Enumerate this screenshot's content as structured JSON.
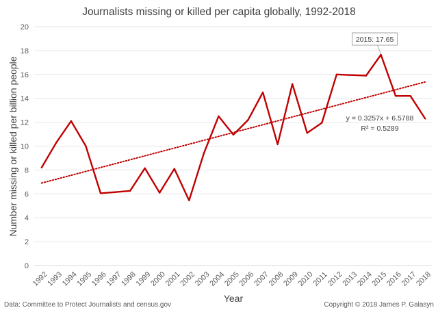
{
  "chart_data": {
    "type": "line",
    "title": "Journalists missing or killed per capita globally, 1992-2018",
    "xlabel": "Year",
    "ylabel": "Number missing or killed per billion people",
    "ylim": [
      0,
      20
    ],
    "yticks": [
      0,
      2,
      4,
      6,
      8,
      10,
      12,
      14,
      16,
      18,
      20
    ],
    "grid": true,
    "categories": [
      "1992",
      "1993",
      "1994",
      "1995",
      "1996",
      "1997",
      "1998",
      "1999",
      "2000",
      "2001",
      "2002",
      "2003",
      "2004",
      "2005",
      "2006",
      "2007",
      "2008",
      "2009",
      "2010",
      "2011",
      "2012",
      "2013",
      "2014",
      "2015",
      "2016",
      "2017",
      "2018"
    ],
    "series": [
      {
        "name": "Missing or killed per billion people",
        "color": "#c00000",
        "values": [
          8.2,
          10.3,
          12.1,
          10.0,
          6.05,
          6.15,
          6.25,
          8.15,
          6.1,
          8.1,
          5.45,
          9.4,
          12.5,
          10.95,
          12.2,
          14.5,
          10.15,
          15.2,
          11.1,
          11.95,
          16.0,
          15.95,
          15.9,
          17.65,
          14.2,
          14.2,
          12.3
        ]
      }
    ],
    "trendline": {
      "type": "linear",
      "slope": 0.3257,
      "intercept": 6.5788,
      "equation": "y = 0.3257x + 6.5788",
      "r_squared": "R² = 0.5289",
      "color": "#c00000"
    },
    "callout": {
      "label": "2015: 17.65",
      "category": "2015",
      "value": 17.65
    },
    "source_note": "Data: Committee to Protect Journalists and census.gov",
    "copyright": "Copyright © 2018 James P. Galasyn"
  }
}
